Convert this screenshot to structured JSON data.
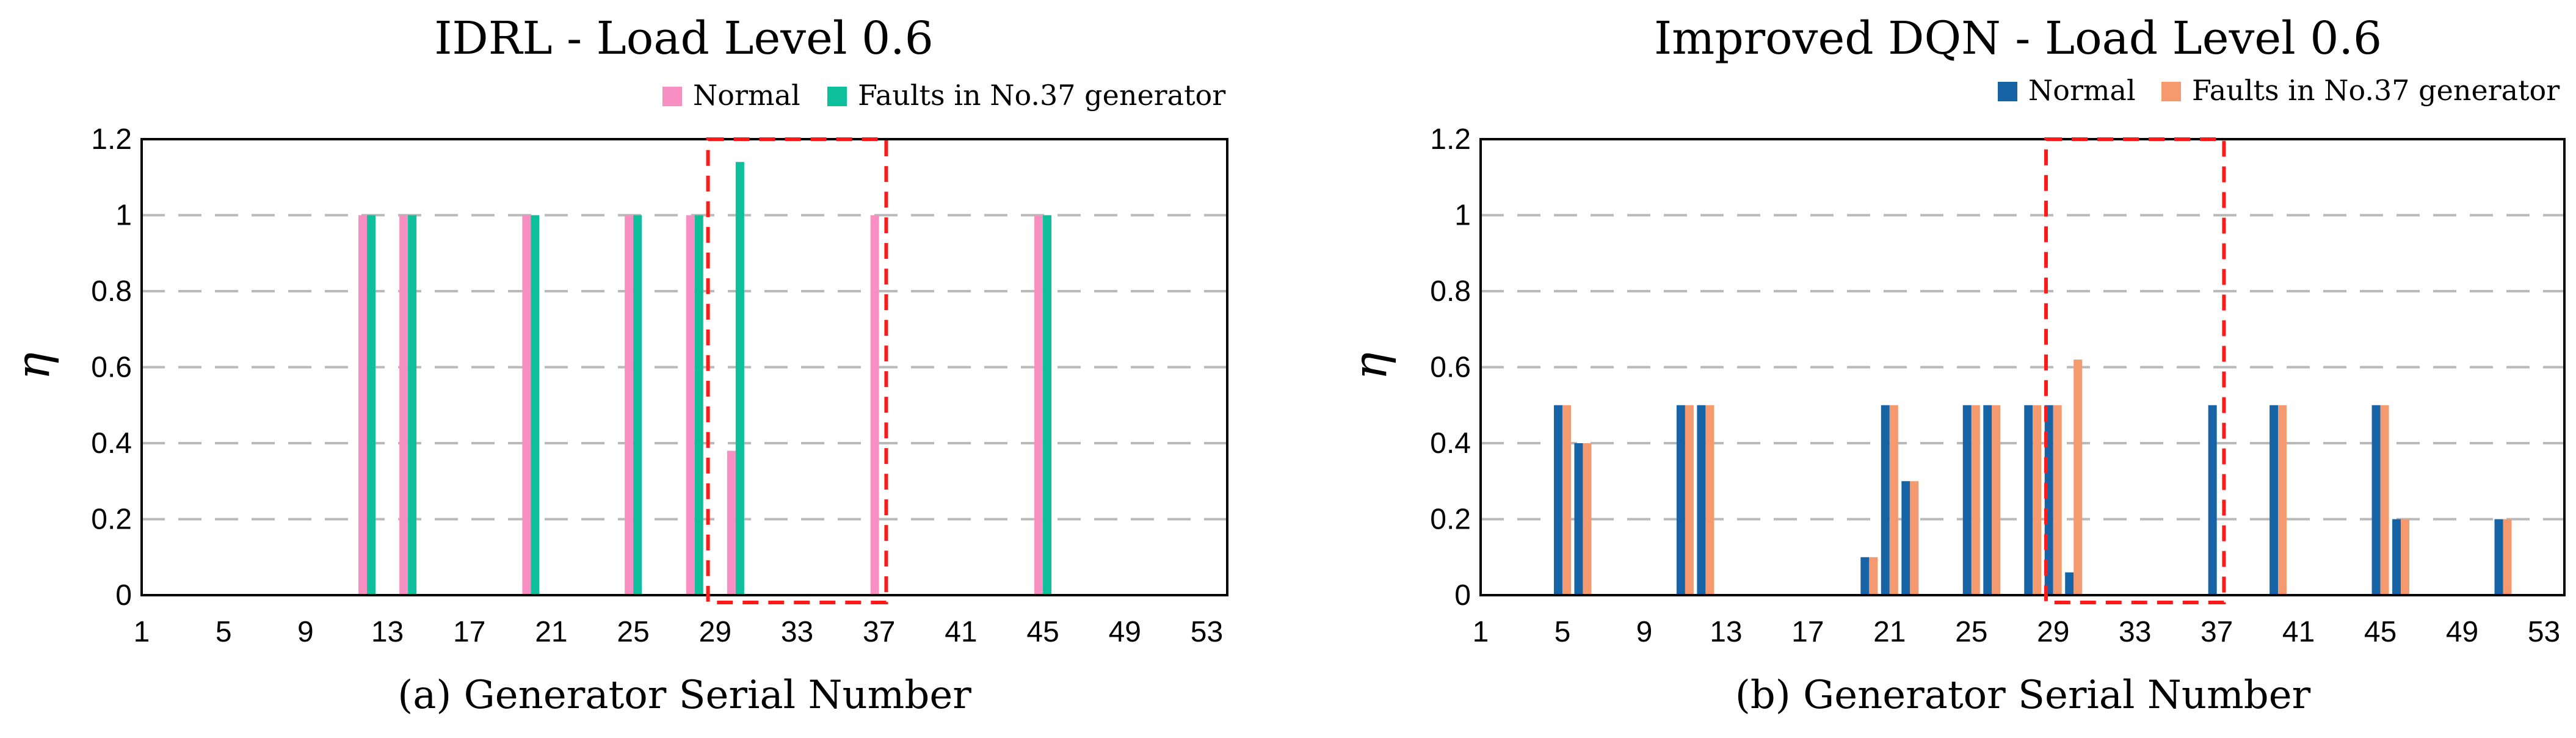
{
  "chart_data": [
    {
      "type": "bar",
      "title": "IDRL - Load Level 0.6",
      "xlabel": "(a) Generator Serial Number",
      "ylabel": "η",
      "ylim": [
        0,
        1.2
      ],
      "yticks": [
        "0",
        "0.2",
        "0.4",
        "0.6",
        "0.8",
        "1",
        "1.2"
      ],
      "xtick_labels": [
        "1",
        "5",
        "9",
        "13",
        "17",
        "21",
        "25",
        "29",
        "33",
        "37",
        "41",
        "45",
        "49",
        "53"
      ],
      "x_range": [
        1,
        54
      ],
      "grid": true,
      "legend_position": "top-right",
      "highlight_generators": [
        29,
        37
      ],
      "series": [
        {
          "name": "Normal",
          "color": "#f78fc2",
          "points": [
            {
              "generator": 12,
              "value": 1.0
            },
            {
              "generator": 14,
              "value": 1.0
            },
            {
              "generator": 20,
              "value": 1.0
            },
            {
              "generator": 25,
              "value": 1.0
            },
            {
              "generator": 28,
              "value": 1.0
            },
            {
              "generator": 30,
              "value": 0.38
            },
            {
              "generator": 37,
              "value": 1.0
            },
            {
              "generator": 45,
              "value": 1.0
            }
          ]
        },
        {
          "name": "Faults in No.37 generator",
          "color": "#0dbf9b",
          "points": [
            {
              "generator": 12,
              "value": 1.0
            },
            {
              "generator": 14,
              "value": 1.0
            },
            {
              "generator": 20,
              "value": 1.0
            },
            {
              "generator": 25,
              "value": 1.0
            },
            {
              "generator": 28,
              "value": 1.0
            },
            {
              "generator": 30,
              "value": 1.14
            },
            {
              "generator": 45,
              "value": 1.0
            }
          ]
        }
      ]
    },
    {
      "type": "bar",
      "title": "Improved DQN - Load Level 0.6",
      "xlabel": "(b) Generator Serial Number",
      "ylabel": "η",
      "ylim": [
        0,
        1.2
      ],
      "yticks": [
        "0",
        "0.2",
        "0.4",
        "0.6",
        "0.8",
        "1",
        "1.2"
      ],
      "xtick_labels": [
        "1",
        "5",
        "9",
        "13",
        "17",
        "21",
        "25",
        "29",
        "33",
        "37",
        "41",
        "45",
        "49",
        "53"
      ],
      "x_range": [
        1,
        54
      ],
      "grid": true,
      "legend_position": "top-right",
      "highlight_generators": [
        29,
        37
      ],
      "series": [
        {
          "name": "Normal",
          "color": "#1663a6",
          "points": [
            {
              "generator": 5,
              "value": 0.5
            },
            {
              "generator": 6,
              "value": 0.4
            },
            {
              "generator": 11,
              "value": 0.5
            },
            {
              "generator": 12,
              "value": 0.5
            },
            {
              "generator": 20,
              "value": 0.1
            },
            {
              "generator": 21,
              "value": 0.5
            },
            {
              "generator": 22,
              "value": 0.3
            },
            {
              "generator": 25,
              "value": 0.5
            },
            {
              "generator": 26,
              "value": 0.5
            },
            {
              "generator": 28,
              "value": 0.5
            },
            {
              "generator": 29,
              "value": 0.5
            },
            {
              "generator": 30,
              "value": 0.06
            },
            {
              "generator": 37,
              "value": 0.5
            },
            {
              "generator": 40,
              "value": 0.5
            },
            {
              "generator": 45,
              "value": 0.5
            },
            {
              "generator": 46,
              "value": 0.2
            },
            {
              "generator": 51,
              "value": 0.2
            }
          ]
        },
        {
          "name": "Faults in No.37 generator",
          "color": "#f59a6f",
          "points": [
            {
              "generator": 5,
              "value": 0.5
            },
            {
              "generator": 6,
              "value": 0.4
            },
            {
              "generator": 11,
              "value": 0.5
            },
            {
              "generator": 12,
              "value": 0.5
            },
            {
              "generator": 20,
              "value": 0.1
            },
            {
              "generator": 21,
              "value": 0.5
            },
            {
              "generator": 22,
              "value": 0.3
            },
            {
              "generator": 25,
              "value": 0.5
            },
            {
              "generator": 26,
              "value": 0.5
            },
            {
              "generator": 28,
              "value": 0.5
            },
            {
              "generator": 29,
              "value": 0.5
            },
            {
              "generator": 30,
              "value": 0.62
            },
            {
              "generator": 40,
              "value": 0.5
            },
            {
              "generator": 45,
              "value": 0.5
            },
            {
              "generator": 46,
              "value": 0.2
            },
            {
              "generator": 51,
              "value": 0.2
            }
          ]
        }
      ]
    }
  ]
}
